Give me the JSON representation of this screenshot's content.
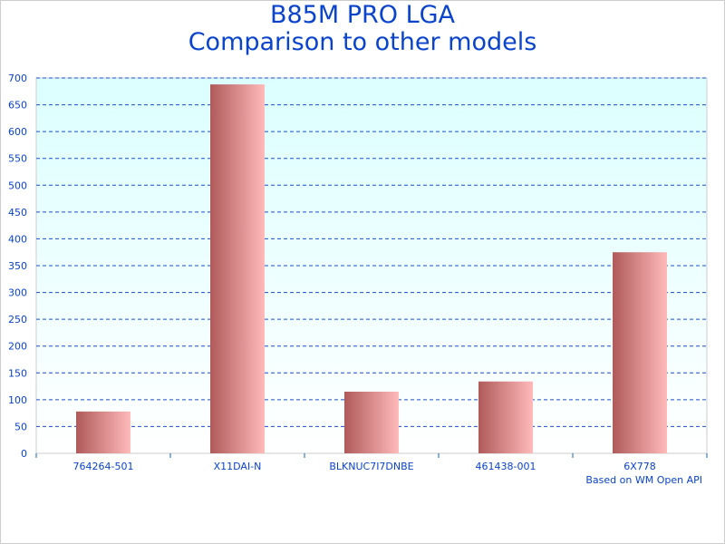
{
  "chart_data": {
    "type": "bar",
    "title": "B85M PRO LGA",
    "subtitle": "Comparison to other models",
    "categories": [
      "764264-501",
      "X11DAI-N",
      "BLKNUC7I7DNBE",
      "461438-001",
      "6X778"
    ],
    "values": [
      78,
      688,
      115,
      134,
      375
    ],
    "ylim": [
      0,
      700
    ],
    "yticks": [
      0,
      50,
      100,
      150,
      200,
      250,
      300,
      350,
      400,
      450,
      500,
      550,
      600,
      650,
      700
    ],
    "grid": true,
    "xlabel": "",
    "ylabel": "",
    "credit": "Based on WM Open API",
    "colors": {
      "bar_dark": "#b05a5a",
      "bar_light": "#ffbaba",
      "text": "#0a44cc",
      "grid": "#1a4fcc",
      "bg_top": "#dcffff",
      "bg_bottom": "#ffffff"
    }
  }
}
